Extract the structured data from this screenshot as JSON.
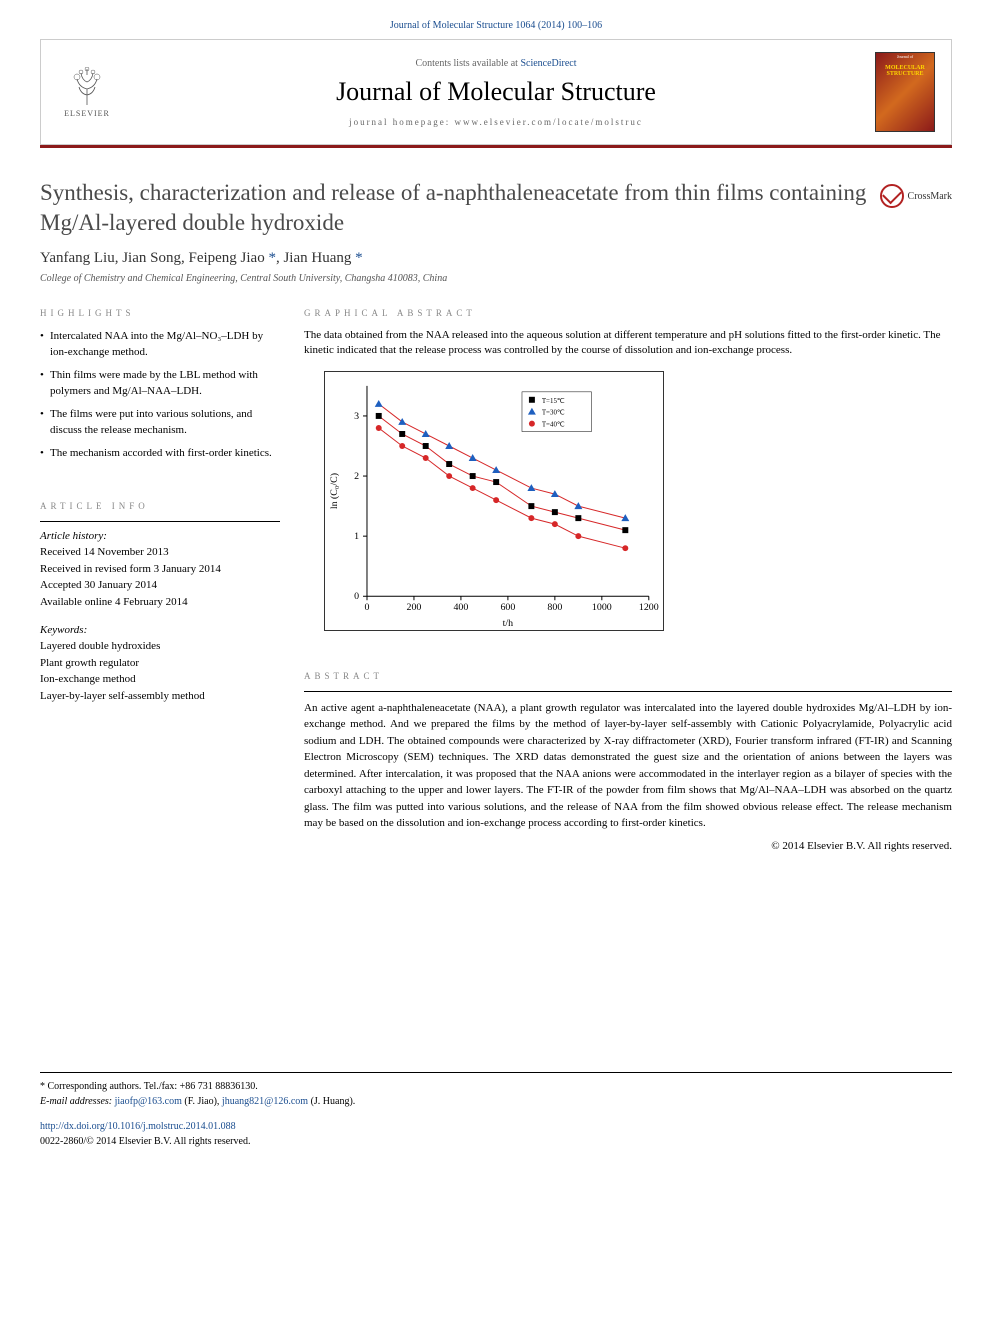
{
  "top_citation": "Journal of Molecular Structure 1064 (2014) 100–106",
  "header": {
    "contents_prefix": "Contents lists available at ",
    "contents_link": "ScienceDirect",
    "journal_name": "Journal of Molecular Structure",
    "homepage_prefix": "journal homepage: ",
    "homepage_url": "www.elsevier.com/locate/molstruc",
    "publisher_name": "ELSEVIER",
    "cover_label": "Journal of",
    "cover_title": "MOLECULAR STRUCTURE"
  },
  "colors": {
    "divider": "#8b1a1a",
    "link": "#1a4d8f",
    "section_label": "#888888"
  },
  "title": "Synthesis, characterization and release of a-naphthaleneacetate from thin films containing Mg/Al-layered double hydroxide",
  "crossmark": "CrossMark",
  "authors_html": "Yanfang Liu, Jian Song, Feipeng Jiao *, Jian Huang *",
  "affiliation": "College of Chemistry and Chemical Engineering, Central South University, Changsha 410083, China",
  "highlights": {
    "label": "HIGHLIGHTS",
    "items": [
      "Intercalated NAA into the Mg/Al–NO₃–LDH by ion-exchange method.",
      "Thin films were made by the LBL method with polymers and Mg/Al–NAA–LDH.",
      "The films were put into various solutions, and discuss the release mechanism.",
      "The mechanism accorded with first-order kinetics."
    ]
  },
  "graphical_abstract": {
    "label": "GRAPHICAL ABSTRACT",
    "caption": "The data obtained from the NAA released into the aqueous solution at different temperature and pH solutions fitted to the first-order kinetic. The kinetic indicated that the release process was controlled by the course of dissolution and ion-exchange process.",
    "chart": {
      "type": "scatter-line",
      "xlabel": "t/h",
      "ylabel": "ln (C₀/C)",
      "xlim": [
        0,
        1200
      ],
      "ylim": [
        0,
        3.5
      ],
      "xticks": [
        0,
        200,
        400,
        600,
        800,
        1000,
        1200
      ],
      "yticks": [
        0,
        1,
        2,
        3
      ],
      "legend_items": [
        "T=15℃",
        "T=30℃",
        "T=40℃"
      ],
      "legend_markers": [
        "square",
        "triangle",
        "circle"
      ],
      "legend_colors": [
        "#000000",
        "#1e5fbf",
        "#d62728"
      ],
      "series": [
        {
          "marker": "square",
          "color": "#000000",
          "line_color": "#d62728",
          "x": [
            50,
            150,
            250,
            350,
            450,
            550,
            700,
            800,
            900,
            1100
          ],
          "y": [
            3.0,
            2.7,
            2.5,
            2.2,
            2.0,
            1.9,
            1.5,
            1.4,
            1.3,
            1.1
          ]
        },
        {
          "marker": "triangle",
          "color": "#1e5fbf",
          "line_color": "#d62728",
          "x": [
            50,
            150,
            250,
            350,
            450,
            550,
            700,
            800,
            900,
            1100
          ],
          "y": [
            3.2,
            2.9,
            2.7,
            2.5,
            2.3,
            2.1,
            1.8,
            1.7,
            1.5,
            1.3
          ]
        },
        {
          "marker": "circle",
          "color": "#d62728",
          "line_color": "#d62728",
          "x": [
            50,
            150,
            250,
            350,
            450,
            550,
            700,
            800,
            900,
            1100
          ],
          "y": [
            2.8,
            2.5,
            2.3,
            2.0,
            1.8,
            1.6,
            1.3,
            1.2,
            1.0,
            0.8
          ]
        }
      ],
      "axis_fontsize": 10,
      "legend_fontsize": 7,
      "background_color": "#ffffff",
      "line_width": 1
    }
  },
  "article_info": {
    "label": "ARTICLE INFO",
    "history_label": "Article history:",
    "history": [
      "Received 14 November 2013",
      "Received in revised form 3 January 2014",
      "Accepted 30 January 2014",
      "Available online 4 February 2014"
    ],
    "keywords_label": "Keywords:",
    "keywords": [
      "Layered double hydroxides",
      "Plant growth regulator",
      "Ion-exchange method",
      "Layer-by-layer self-assembly method"
    ]
  },
  "abstract": {
    "label": "ABSTRACT",
    "text": "An active agent a-naphthaleneacetate (NAA), a plant growth regulator was intercalated into the layered double hydroxides Mg/Al–LDH by ion-exchange method. And we prepared the films by the method of layer-by-layer self-assembly with Cationic Polyacrylamide, Polyacrylic acid sodium and LDH. The obtained compounds were characterized by X-ray diffractometer (XRD), Fourier transform infrared (FT-IR) and Scanning Electron Microscopy (SEM) techniques. The XRD datas demonstrated the guest size and the orientation of anions between the layers was determined. After intercalation, it was proposed that the NAA anions were accommodated in the interlayer region as a bilayer of species with the carboxyl attaching to the upper and lower layers. The FT-IR of the powder from film shows that Mg/Al–NAA–LDH was absorbed on the quartz glass. The film was putted into various solutions, and the release of NAA from the film showed obvious release effect. The release mechanism may be based on the dissolution and ion-exchange process according to first-order kinetics.",
    "copyright": "© 2014 Elsevier B.V. All rights reserved."
  },
  "footer": {
    "corr_label": "* Corresponding authors. Tel./fax: +86 731 88836130.",
    "email_label": "E-mail addresses: ",
    "email1": "jiaofp@163.com",
    "email1_name": " (F. Jiao), ",
    "email2": "jhuang821@126.com",
    "email2_name": " (J. Huang).",
    "doi": "http://dx.doi.org/10.1016/j.molstruc.2014.01.088",
    "issn": "0022-2860/© 2014 Elsevier B.V. All rights reserved."
  }
}
